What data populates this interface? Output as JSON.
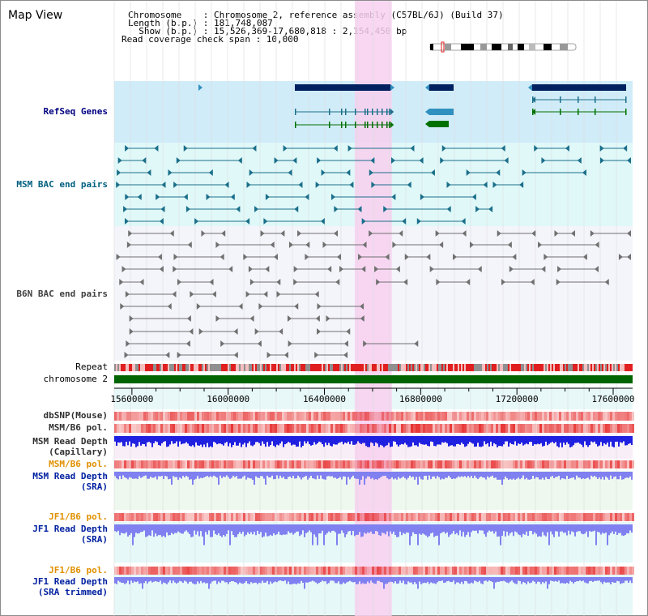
{
  "header": {
    "title": "Map View",
    "info_lines": [
      "Chromosome    : Chromosome 2, reference assembly (C57BL/6J) (Build 37)",
      "Length (b.p.) : 181,748,087",
      "  Show (b.p.) : 15,526,369-17,680,818 : 2,154,450 bp",
      "Read coverage check span : 10,000"
    ]
  },
  "tracks": {
    "refseq": "RefSeq Genes",
    "msm_bac": "MSM BAC end pairs",
    "b6n_bac": "B6N BAC end pairs",
    "repeat": "Repeat",
    "chromosome": "chromosome 2",
    "dbsnp": "dbSNP(Mouse)",
    "msm_b6_pol": "MSM/B6 pol.",
    "msm_depth_cap_1": "MSM Read Depth",
    "msm_depth_cap_2": "(Capillary)",
    "msm_b6_pol_sra": "MSM/B6 pol.",
    "msm_depth_sra_1": "MSM Read Depth",
    "msm_depth_sra_2": "(SRA)",
    "jf1_b6_pol": "JF1/B6 pol.",
    "jf1_depth_sra_1": "JF1 Read Depth",
    "jf1_depth_sra_2": "(SRA)",
    "jf1_b6_pol_trim": "JF1/B6 pol.",
    "jf1_depth_trim_1": "JF1 Read Depth",
    "jf1_depth_trim_2": "(SRA trimmed)"
  },
  "axis": {
    "range_bp": [
      15526369,
      17680818
    ],
    "ticks": [
      15600000,
      16000000,
      16400000,
      16800000,
      17200000,
      17600000
    ],
    "tick_labels": [
      "15600000",
      "16000000",
      "16400000",
      "16800000",
      "17200000",
      "17600000"
    ]
  },
  "highlight_bp": [
    16526000,
    16680000
  ],
  "colors": {
    "refseq_bg": "#d0ecf8",
    "msm_bac_bg": "#e0f8f8",
    "b6n_bg": "#f4f4fb",
    "highlight": "#f8d0f0",
    "chromosome": "#006400",
    "repeat": "#e02020",
    "msm_feature": "#1b6f8a",
    "b6n_feature": "#707070",
    "gene_navy": "#002060",
    "gene_teal": "#3090c0",
    "gene_green": "#007000",
    "pol_red": "#f07070",
    "depth_blue": "#2020e0",
    "depth_light": "#8080f0"
  },
  "icons": {
    "ideogram": "chromosome-ideogram-icon"
  }
}
